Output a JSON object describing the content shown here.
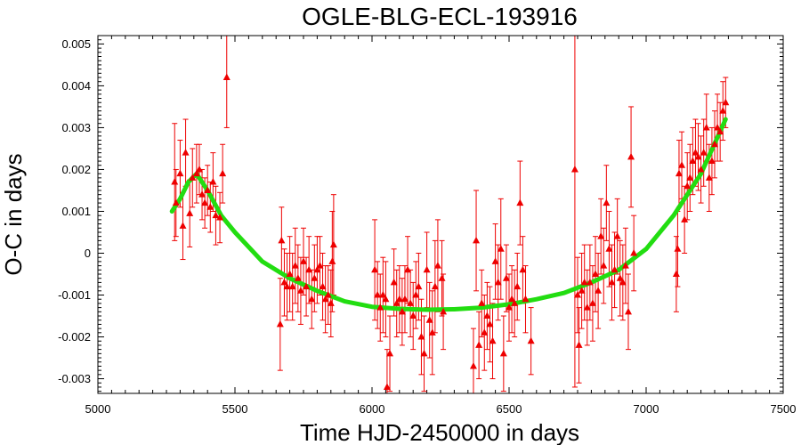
{
  "chart_data": {
    "type": "scatter",
    "title": "OGLE-BLG-ECL-193916",
    "xlabel": "Time HJD-2450000 in days",
    "ylabel": "O-C in days",
    "xlim": [
      5000,
      7500
    ],
    "ylim": [
      -0.00335,
      0.0052
    ],
    "xticks": [
      5000,
      5500,
      6000,
      6500,
      7000,
      7500
    ],
    "yticks": [
      -0.003,
      -0.002,
      -0.001,
      0,
      0.001,
      0.002,
      0.003,
      0.004,
      0.005
    ],
    "xtick_labels": [
      "5000",
      "5500",
      "6000",
      "6500",
      "7000",
      "7500"
    ],
    "ytick_labels": [
      "-0.003",
      "-0.002",
      "-0.001",
      "0",
      "0.001",
      "0.002",
      "0.003",
      "0.004",
      "0.005"
    ],
    "grid": false,
    "colors": {
      "points": "#ee0000",
      "fit": "#22dd11"
    },
    "series": [
      {
        "kind": "points_with_error_bars",
        "points": [
          {
            "x": 5280,
            "y": 0.0017,
            "err": 0.0014
          },
          {
            "x": 5285,
            "y": 0.0012,
            "err": 0.0008
          },
          {
            "x": 5300,
            "y": 0.0019,
            "err": 0.0008
          },
          {
            "x": 5310,
            "y": 0.00065,
            "err": 0.0008
          },
          {
            "x": 5320,
            "y": 0.0024,
            "err": 0.0008
          },
          {
            "x": 5335,
            "y": 0.00095,
            "err": 0.0008
          },
          {
            "x": 5345,
            "y": 0.0018,
            "err": 0.0007
          },
          {
            "x": 5360,
            "y": 0.0019,
            "err": 0.0007
          },
          {
            "x": 5370,
            "y": 0.002,
            "err": 0.0006
          },
          {
            "x": 5380,
            "y": 0.0014,
            "err": 0.0006
          },
          {
            "x": 5390,
            "y": 0.0012,
            "err": 0.0006
          },
          {
            "x": 5400,
            "y": 0.0015,
            "err": 0.0006
          },
          {
            "x": 5410,
            "y": 0.0011,
            "err": 0.0006
          },
          {
            "x": 5420,
            "y": 0.0017,
            "err": 0.0007
          },
          {
            "x": 5430,
            "y": 0.0009,
            "err": 0.0007
          },
          {
            "x": 5445,
            "y": 0.00085,
            "err": 0.0006
          },
          {
            "x": 5455,
            "y": 0.0019,
            "err": 0.0007
          },
          {
            "x": 5470,
            "y": 0.0042,
            "err": 0.0012
          },
          {
            "x": 5665,
            "y": -0.0017,
            "err": 0.0011
          },
          {
            "x": 5670,
            "y": 0.0003,
            "err": 0.0008
          },
          {
            "x": 5680,
            "y": -0.0007,
            "err": 0.0008
          },
          {
            "x": 5690,
            "y": -0.0008,
            "err": 0.0008
          },
          {
            "x": 5700,
            "y": -0.0005,
            "err": 0.0009
          },
          {
            "x": 5710,
            "y": -0.0008,
            "err": 0.0008
          },
          {
            "x": 5720,
            "y": -0.0003,
            "err": 0.0009
          },
          {
            "x": 5730,
            "y": -0.0006,
            "err": 0.0008
          },
          {
            "x": 5740,
            "y": -0.0009,
            "err": 0.0008
          },
          {
            "x": 5750,
            "y": -0.0002,
            "err": 0.0008
          },
          {
            "x": 5760,
            "y": -0.0008,
            "err": 0.0007
          },
          {
            "x": 5770,
            "y": -0.0004,
            "err": 0.0008
          },
          {
            "x": 5780,
            "y": -0.0011,
            "err": 0.0007
          },
          {
            "x": 5790,
            "y": -0.0006,
            "err": 0.0008
          },
          {
            "x": 5800,
            "y": -0.0004,
            "err": 0.0008
          },
          {
            "x": 5810,
            "y": -0.0003,
            "err": 0.0007
          },
          {
            "x": 5820,
            "y": -0.0008,
            "err": 0.0008
          },
          {
            "x": 5830,
            "y": -0.0011,
            "err": 0.0008
          },
          {
            "x": 5840,
            "y": -0.001,
            "err": 0.0007
          },
          {
            "x": 5850,
            "y": -0.0012,
            "err": 0.0008
          },
          {
            "x": 5855,
            "y": -0.0002,
            "err": 0.0012
          },
          {
            "x": 5860,
            "y": 0.0002,
            "err": 0.0012
          },
          {
            "x": 6010,
            "y": -0.0004,
            "err": 0.0012
          },
          {
            "x": 6020,
            "y": -0.001,
            "err": 0.0008
          },
          {
            "x": 6030,
            "y": -0.0013,
            "err": 0.0008
          },
          {
            "x": 6040,
            "y": -0.001,
            "err": 0.0009
          },
          {
            "x": 6050,
            "y": -0.0011,
            "err": 0.0009
          },
          {
            "x": 6055,
            "y": -0.0032,
            "err": 0.0009
          },
          {
            "x": 6065,
            "y": -0.0024,
            "err": 0.0009
          },
          {
            "x": 6080,
            "y": -0.0007,
            "err": 0.0008
          },
          {
            "x": 6090,
            "y": -0.0012,
            "err": 0.0008
          },
          {
            "x": 6100,
            "y": -0.0011,
            "err": 0.0008
          },
          {
            "x": 6110,
            "y": -0.0014,
            "err": 0.0008
          },
          {
            "x": 6120,
            "y": -0.0011,
            "err": 0.0008
          },
          {
            "x": 6130,
            "y": -0.0004,
            "err": 0.0008
          },
          {
            "x": 6140,
            "y": -0.0012,
            "err": 0.0008
          },
          {
            "x": 6150,
            "y": -0.0015,
            "err": 0.0008
          },
          {
            "x": 6160,
            "y": -0.001,
            "err": 0.0008
          },
          {
            "x": 6170,
            "y": -0.0008,
            "err": 0.0008
          },
          {
            "x": 6180,
            "y": -0.002,
            "err": 0.0009
          },
          {
            "x": 6190,
            "y": -0.0024,
            "err": 0.0009
          },
          {
            "x": 6200,
            "y": -0.0004,
            "err": 0.0009
          },
          {
            "x": 6210,
            "y": -0.0016,
            "err": 0.0009
          },
          {
            "x": 6220,
            "y": -0.0019,
            "err": 0.001
          },
          {
            "x": 6230,
            "y": -0.0008,
            "err": 0.0011
          },
          {
            "x": 6240,
            "y": -0.0003,
            "err": 0.0011
          },
          {
            "x": 6255,
            "y": -0.0006,
            "err": 0.0009
          },
          {
            "x": 6260,
            "y": -0.0014,
            "err": 0.0009
          },
          {
            "x": 6370,
            "y": -0.0027,
            "err": 0.0009
          },
          {
            "x": 6380,
            "y": 0.0003,
            "err": 0.0012
          },
          {
            "x": 6390,
            "y": -0.0022,
            "err": 0.0008
          },
          {
            "x": 6400,
            "y": -0.0012,
            "err": 0.0008
          },
          {
            "x": 6410,
            "y": -0.0019,
            "err": 0.0009
          },
          {
            "x": 6420,
            "y": -0.0015,
            "err": 0.0008
          },
          {
            "x": 6430,
            "y": -0.0017,
            "err": 0.0009
          },
          {
            "x": 6440,
            "y": -0.0021,
            "err": 0.0009
          },
          {
            "x": 6450,
            "y": -0.0002,
            "err": 0.0009
          },
          {
            "x": 6460,
            "y": -0.0007,
            "err": 0.0009
          },
          {
            "x": 6470,
            "y": 0.0001,
            "err": 0.0012
          },
          {
            "x": 6480,
            "y": -0.0024,
            "err": 0.0009
          },
          {
            "x": 6490,
            "y": -0.0006,
            "err": 0.0008
          },
          {
            "x": 6500,
            "y": -0.0013,
            "err": 0.0008
          },
          {
            "x": 6510,
            "y": -0.0011,
            "err": 0.0008
          },
          {
            "x": 6520,
            "y": -0.0012,
            "err": 0.0008
          },
          {
            "x": 6530,
            "y": -0.0008,
            "err": 0.0008
          },
          {
            "x": 6540,
            "y": 0.0012,
            "err": 0.001
          },
          {
            "x": 6550,
            "y": -0.0004,
            "err": 0.0008
          },
          {
            "x": 6560,
            "y": -0.0011,
            "err": 0.0008
          },
          {
            "x": 6580,
            "y": -0.0021,
            "err": 0.0008
          },
          {
            "x": 6740,
            "y": 0.002,
            "err": 0.0052
          },
          {
            "x": 6750,
            "y": -0.001,
            "err": 0.0009
          },
          {
            "x": 6755,
            "y": -0.0022,
            "err": 0.0009
          },
          {
            "x": 6765,
            "y": -0.0009,
            "err": 0.0009
          },
          {
            "x": 6775,
            "y": -0.0007,
            "err": 0.0009
          },
          {
            "x": 6785,
            "y": -0.0013,
            "err": 0.0009
          },
          {
            "x": 6795,
            "y": -0.0007,
            "err": 0.0009
          },
          {
            "x": 6805,
            "y": -0.0012,
            "err": 0.0009
          },
          {
            "x": 6815,
            "y": -0.0005,
            "err": 0.0009
          },
          {
            "x": 6825,
            "y": -0.0009,
            "err": 0.0009
          },
          {
            "x": 6835,
            "y": 0.0004,
            "err": 0.0009
          },
          {
            "x": 6845,
            "y": -0.0003,
            "err": 0.0009
          },
          {
            "x": 6855,
            "y": 0.0012,
            "err": 0.0009
          },
          {
            "x": 6865,
            "y": 0.0001,
            "err": 0.0009
          },
          {
            "x": 6875,
            "y": -0.0007,
            "err": 0.0009
          },
          {
            "x": 6885,
            "y": -0.0004,
            "err": 0.0009
          },
          {
            "x": 6895,
            "y": 0.0004,
            "err": 0.0009
          },
          {
            "x": 6905,
            "y": -0.0006,
            "err": 0.0009
          },
          {
            "x": 6915,
            "y": -0.0007,
            "err": 0.0009
          },
          {
            "x": 6925,
            "y": -0.0003,
            "err": 0.0009
          },
          {
            "x": 6935,
            "y": -0.0014,
            "err": 0.0009
          },
          {
            "x": 6945,
            "y": 0.0023,
            "err": 0.0012
          },
          {
            "x": 6955,
            "y": 0.0,
            "err": 0.0009
          },
          {
            "x": 7110,
            "y": -0.0005,
            "err": 0.0009
          },
          {
            "x": 7115,
            "y": 0.0001,
            "err": 0.0009
          },
          {
            "x": 7120,
            "y": 0.0019,
            "err": 0.0008
          },
          {
            "x": 7130,
            "y": 0.0021,
            "err": 0.0008
          },
          {
            "x": 7140,
            "y": 0.0008,
            "err": 0.0008
          },
          {
            "x": 7150,
            "y": 0.0016,
            "err": 0.0008
          },
          {
            "x": 7160,
            "y": 0.0018,
            "err": 0.0008
          },
          {
            "x": 7170,
            "y": 0.0022,
            "err": 0.0008
          },
          {
            "x": 7180,
            "y": 0.0024,
            "err": 0.0008
          },
          {
            "x": 7190,
            "y": 0.0023,
            "err": 0.0008
          },
          {
            "x": 7200,
            "y": 0.002,
            "err": 0.0008
          },
          {
            "x": 7210,
            "y": 0.0024,
            "err": 0.0008
          },
          {
            "x": 7220,
            "y": 0.003,
            "err": 0.0008
          },
          {
            "x": 7230,
            "y": 0.0018,
            "err": 0.0008
          },
          {
            "x": 7240,
            "y": 0.0022,
            "err": 0.0008
          },
          {
            "x": 7250,
            "y": 0.0026,
            "err": 0.0008
          },
          {
            "x": 7260,
            "y": 0.003,
            "err": 0.0008
          },
          {
            "x": 7270,
            "y": 0.0029,
            "err": 0.0007
          },
          {
            "x": 7280,
            "y": 0.0034,
            "err": 0.0007
          },
          {
            "x": 7290,
            "y": 0.0036,
            "err": 0.0006
          }
        ]
      },
      {
        "kind": "fit_curve",
        "x": [
          5270,
          5300,
          5330,
          5360,
          5400,
          5450,
          5500,
          5600,
          5700,
          5800,
          5900,
          6000,
          6100,
          6200,
          6300,
          6400,
          6500,
          6600,
          6700,
          6800,
          6900,
          7000,
          7100,
          7200,
          7290
        ],
        "y": [
          0.001,
          0.0013,
          0.0017,
          0.0019,
          0.0015,
          0.0009,
          0.0005,
          -0.0002,
          -0.0006,
          -0.0009,
          -0.00115,
          -0.00128,
          -0.00133,
          -0.00135,
          -0.00134,
          -0.0013,
          -0.00122,
          -0.0011,
          -0.00095,
          -0.0007,
          -0.0004,
          0.0001,
          0.0009,
          0.0019,
          0.0032
        ]
      }
    ]
  }
}
